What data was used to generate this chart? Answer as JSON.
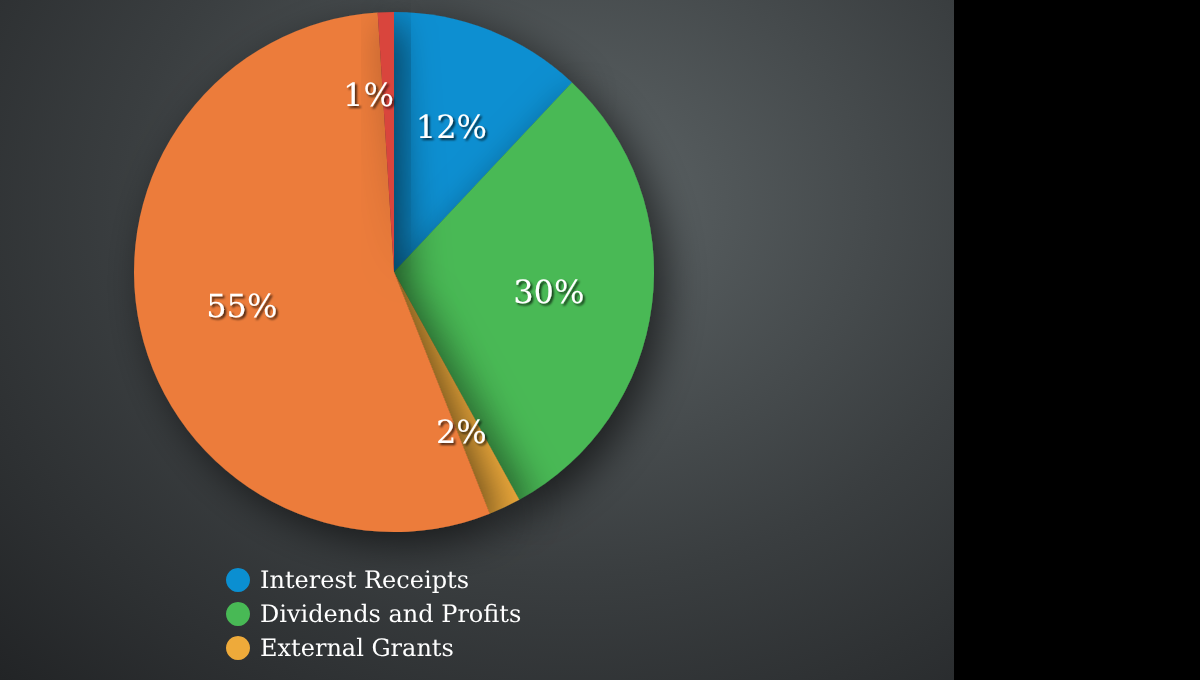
{
  "chart_data": {
    "type": "pie",
    "categories": [
      "Interest Receipts",
      "Dividends and Profits",
      "External Grants",
      null,
      null
    ],
    "values": [
      12,
      30,
      2,
      55,
      1
    ],
    "value_labels": [
      "12%",
      "30%",
      "2%",
      "55%",
      "1%"
    ],
    "colors": [
      "#0b8fd1",
      "#48b955",
      "#eeaa3a",
      "#ec7b3a",
      "#d9453c"
    ],
    "legend": "bottom"
  }
}
